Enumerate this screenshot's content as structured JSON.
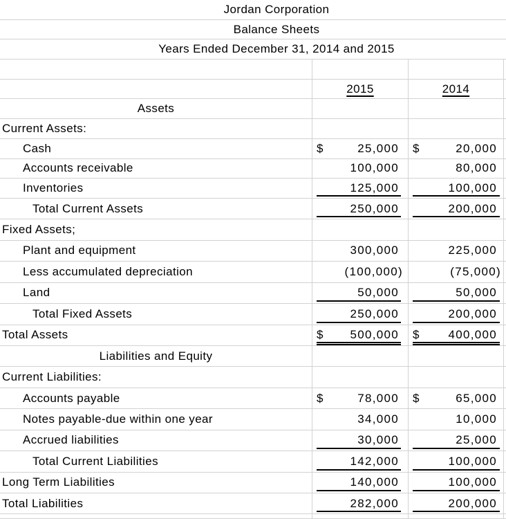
{
  "sheet": {
    "titles": [
      "Jordan Corporation",
      "Balance Sheets",
      "Years Ended December 31, 2014 and 2015"
    ],
    "column_headers": {
      "col_2015": "2015",
      "col_2014": "2014"
    },
    "currency_symbol": "$",
    "colors": {
      "gridline": "#d2d2d2",
      "text": "#000000",
      "background": "#ffffff"
    },
    "rows": [
      {
        "type": "title",
        "label": "Jordan Corporation"
      },
      {
        "type": "title",
        "label": "Balance Sheets"
      },
      {
        "type": "title",
        "label": "Years Ended December 31, 2014 and 2015"
      },
      {
        "type": "blank"
      },
      {
        "type": "colheader"
      },
      {
        "type": "section-center",
        "label": "Assets"
      },
      {
        "type": "item",
        "label": "Current Assets:",
        "indent": 0
      },
      {
        "type": "item",
        "label": "Cash",
        "indent": 1,
        "dollar": true,
        "v2015": "25,000",
        "v2014": "20,000"
      },
      {
        "type": "item",
        "label": "Accounts receivable",
        "indent": 1,
        "v2015": "100,000",
        "v2014": "80,000"
      },
      {
        "type": "item",
        "label": "Inventories",
        "indent": 1,
        "v2015": "125,000",
        "v2014": "100,000",
        "underline": "single"
      },
      {
        "type": "item",
        "label": "Total Current Assets",
        "indent": 2,
        "v2015": "250,000",
        "v2014": "200,000",
        "underline": "single"
      },
      {
        "type": "item",
        "label": "Fixed Assets;",
        "indent": 0
      },
      {
        "type": "item",
        "label": "Plant and equipment",
        "indent": 1,
        "v2015": "300,000",
        "v2014": "225,000"
      },
      {
        "type": "item",
        "label": "Less accumulated depreciation",
        "indent": 1,
        "v2015": "(100,000)",
        "v2014": "(75,000)",
        "negative": true
      },
      {
        "type": "item",
        "label": "Land",
        "indent": 1,
        "v2015": "50,000",
        "v2014": "50,000",
        "underline": "single"
      },
      {
        "type": "item",
        "label": "Total Fixed Assets",
        "indent": 2,
        "v2015": "250,000",
        "v2014": "200,000",
        "underline": "single"
      },
      {
        "type": "item",
        "label": "Total Assets",
        "indent": 0,
        "dollar": true,
        "v2015": "500,000",
        "v2014": "400,000",
        "underline": "double"
      },
      {
        "type": "section-center",
        "label": "Liabilities and Equity"
      },
      {
        "type": "item",
        "label": "Current Liabilities:",
        "indent": 0
      },
      {
        "type": "item",
        "label": "Accounts payable",
        "indent": 1,
        "dollar": true,
        "v2015": "78,000",
        "v2014": "65,000"
      },
      {
        "type": "item",
        "label": "Notes payable-due within one year",
        "indent": 1,
        "v2015": "34,000",
        "v2014": "10,000"
      },
      {
        "type": "item",
        "label": "Accrued liabilities",
        "indent": 1,
        "v2015": "30,000",
        "v2014": "25,000",
        "underline": "single"
      },
      {
        "type": "item",
        "label": "Total Current Liabilities",
        "indent": 2,
        "v2015": "142,000",
        "v2014": "100,000",
        "underline": "single"
      },
      {
        "type": "item",
        "label": "Long Term Liabilities",
        "indent": 0,
        "v2015": "140,000",
        "v2014": "100,000",
        "underline": "single"
      },
      {
        "type": "item",
        "label": "Total Liabilities",
        "indent": 0,
        "v2015": "282,000",
        "v2014": "200,000",
        "underline": "single"
      },
      {
        "type": "blank"
      }
    ]
  }
}
